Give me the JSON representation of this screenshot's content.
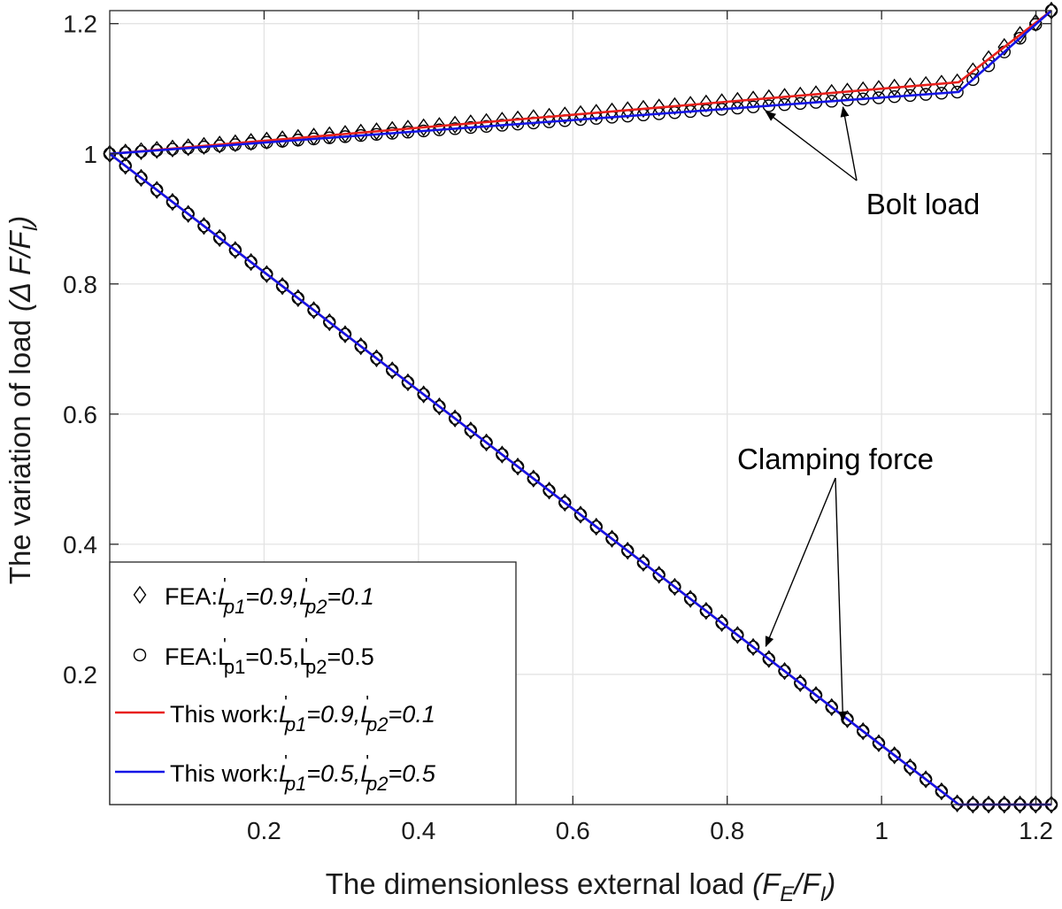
{
  "chart_data": {
    "type": "line",
    "xlabel": "The dimensionless external load (F_E/F_I)",
    "ylabel": "The variation of load (Δ F/F_I)",
    "xlabel_parts": {
      "main": "The dimensionless external load ",
      "open": "(F",
      "sub1": "E",
      "slash": "/F",
      "sub2": "I",
      "close": ")"
    },
    "ylabel_parts": {
      "main": "The variation of load ",
      "open": "(Δ F/F",
      "sub": "I",
      "close": ")"
    },
    "xlim": [
      0,
      1.22
    ],
    "ylim": [
      0,
      1.22
    ],
    "x_ticks": [
      0.2,
      0.4,
      0.6,
      0.8,
      1,
      1.2
    ],
    "x_tick_labels": [
      "0.2",
      "0.4",
      "0.6",
      "0.8",
      "1",
      "1.2"
    ],
    "y_ticks": [
      0.2,
      0.4,
      0.6,
      0.8,
      1,
      1.2
    ],
    "y_tick_labels": [
      "0.2",
      "0.4",
      "0.6",
      "0.8",
      "1",
      "1.2"
    ],
    "grid": true,
    "legend_position": "bottom-left",
    "annotations": [
      {
        "text": "Bolt load",
        "targets": [
          [
            0.85,
            1.073
          ],
          [
            0.95,
            1.08
          ]
        ]
      },
      {
        "text": "Clamping force",
        "targets": [
          [
            0.85,
            0.235
          ],
          [
            0.95,
            0.12
          ]
        ]
      }
    ],
    "series": [
      {
        "name": "FEA:L'p1=0.9,L'p2=0.1",
        "legend": {
          "prefix": "FEA:",
          "a": "L",
          "a_sub": "p1",
          "a_val": "=0.9,",
          "b": "L",
          "b_sub": "p2",
          "b_val": "=0.1",
          "italic": true
        },
        "type": "scatter",
        "marker": "diamond",
        "color": "#000000",
        "bolt": {
          "x0": 0,
          "y0": 1.0,
          "x1": 1.1,
          "y1": 1.11,
          "x_end": 1.22,
          "y_end": 1.22
        },
        "clamp": {
          "x0": 0,
          "y0": 1.0,
          "x1": 1.1,
          "y1": 0.0,
          "x_end": 1.22,
          "y_end": 0.0
        }
      },
      {
        "name": "FEA:L'p1=0.5,L'p2=0.5",
        "legend": {
          "prefix": "FEA:",
          "a": "L",
          "a_sub": "p1",
          "a_val": "=0.5,",
          "b": "L",
          "b_sub": "p2",
          "b_val": "=0.5",
          "italic": false
        },
        "type": "scatter",
        "marker": "circle",
        "color": "#000000",
        "bolt": {
          "x0": 0,
          "y0": 1.0,
          "x1": 1.1,
          "y1": 1.095,
          "x_end": 1.22,
          "y_end": 1.22
        },
        "clamp": {
          "x0": 0,
          "y0": 1.0,
          "x1": 1.1,
          "y1": 0.0,
          "x_end": 1.22,
          "y_end": 0.0
        }
      },
      {
        "name": "This work:L'p1=0.9,L'p2=0.1",
        "legend": {
          "prefix": "This work:",
          "a": "L",
          "a_sub": "p1",
          "a_val": "=0.9,",
          "b": "L",
          "b_sub": "p2",
          "b_val": "=0.1",
          "italic": true
        },
        "type": "line",
        "color": "#e8201c",
        "bolt": {
          "x0": 0,
          "y0": 1.0,
          "x1": 1.1,
          "y1": 1.11,
          "x_end": 1.22,
          "y_end": 1.22
        },
        "clamp": {
          "x0": 0,
          "y0": 1.0,
          "x1": 1.1,
          "y1": 0.0,
          "x_end": 1.22,
          "y_end": 0.0
        }
      },
      {
        "name": "This work:L'p1=0.5,L'p2=0.5",
        "legend": {
          "prefix": "This work:",
          "a": "L",
          "a_sub": "p1",
          "a_val": "=0.5,",
          "b": "L",
          "b_sub": "p2",
          "b_val": "=0.5",
          "italic": true
        },
        "type": "line",
        "color": "#1414e6",
        "bolt": {
          "x0": 0,
          "y0": 1.0,
          "x1": 1.1,
          "y1": 1.095,
          "x_end": 1.22,
          "y_end": 1.22
        },
        "clamp": {
          "x0": 0,
          "y0": 1.0,
          "x1": 1.1,
          "y1": 0.0,
          "x_end": 1.22,
          "y_end": 0.0
        }
      }
    ]
  }
}
